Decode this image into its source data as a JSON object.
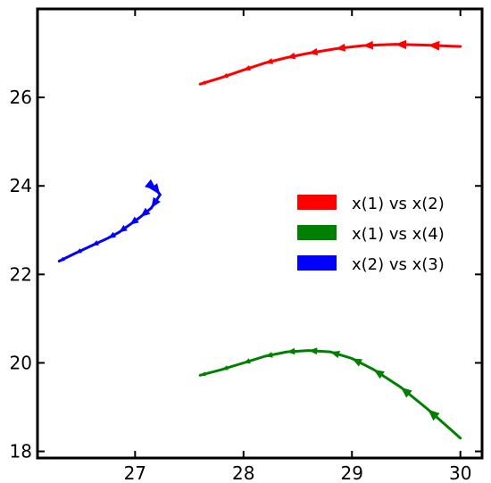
{
  "chart_data": {
    "type": "line",
    "title": "",
    "xlabel": "",
    "ylabel": "",
    "xlim": [
      26.1,
      30.2
    ],
    "ylim": [
      17.85,
      28.0
    ],
    "x_ticks": [
      27,
      28,
      29,
      30
    ],
    "y_ticks": [
      18,
      20,
      22,
      24,
      26
    ],
    "grid": false,
    "legend_position": "center-right",
    "series": [
      {
        "name": "x(1) vs x(2)",
        "color": "#ff0000",
        "x": [
          30.0,
          29.7,
          29.4,
          29.1,
          28.85,
          28.6,
          28.4,
          28.2,
          28.0,
          27.8,
          27.6
        ],
        "y": [
          27.15,
          27.18,
          27.2,
          27.17,
          27.1,
          27.0,
          26.9,
          26.78,
          26.62,
          26.45,
          26.3
        ]
      },
      {
        "name": "x(1) vs x(4)",
        "color": "#008000",
        "x": [
          30.0,
          29.7,
          29.45,
          29.2,
          29.0,
          28.8,
          28.6,
          28.4,
          28.2,
          28.0,
          27.8,
          27.6
        ],
        "y": [
          18.3,
          18.95,
          19.45,
          19.85,
          20.1,
          20.25,
          20.28,
          20.25,
          20.15,
          20.0,
          19.85,
          19.72
        ]
      },
      {
        "name": "x(2) vs x(3)",
        "color": "#0000ff",
        "x": [
          27.15,
          27.2,
          27.23,
          27.15,
          27.05,
          26.95,
          26.85,
          26.75,
          26.6,
          26.45,
          26.3
        ],
        "y": [
          24.0,
          23.9,
          23.8,
          23.5,
          23.3,
          23.12,
          22.95,
          22.82,
          22.65,
          22.48,
          22.3
        ]
      }
    ]
  }
}
